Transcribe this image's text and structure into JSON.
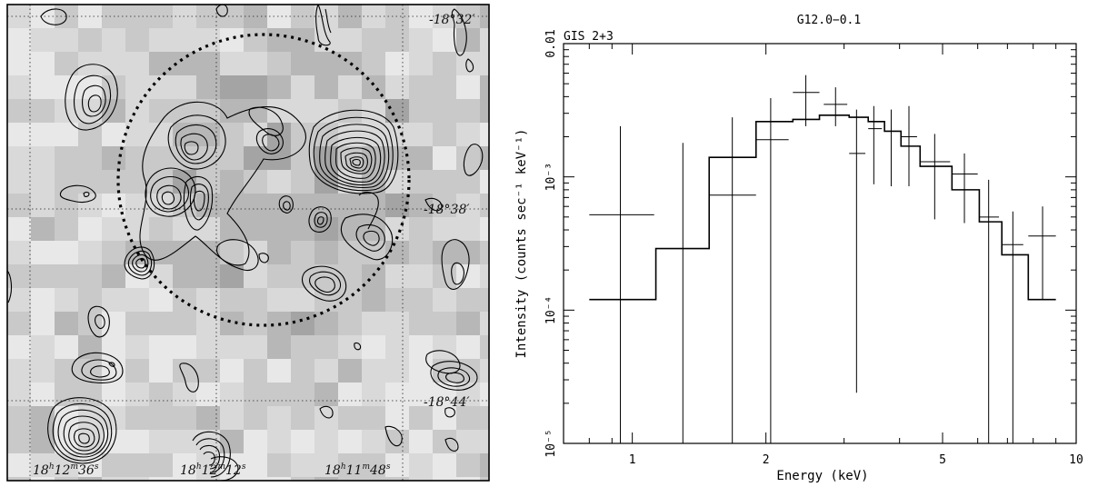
{
  "map_panel": {
    "dec_labels": [
      "-18°32′",
      "-18°38′",
      "-18°44′"
    ],
    "ra_labels": [
      {
        "h": "18",
        "m": "12",
        "s": "36"
      },
      {
        "h": "18",
        "m": "12",
        "s": "12"
      },
      {
        "h": "18",
        "m": "11",
        "s": "48"
      }
    ]
  },
  "chart_data": {
    "type": "line",
    "title": "G12.0−0.1",
    "subtitle": "GIS 2+3",
    "xlabel": "Energy (keV)",
    "ylabel": "Intensity (counts sec⁻¹ keV⁻¹)",
    "xscale": "log",
    "yscale": "log",
    "xlim": [
      0.7,
      10
    ],
    "ylim": [
      1e-05,
      0.01
    ],
    "x_ticks": [
      {
        "value": 1,
        "label": "1"
      },
      {
        "value": 2,
        "label": "2"
      },
      {
        "value": 5,
        "label": "5"
      },
      {
        "value": 10,
        "label": "10"
      }
    ],
    "y_ticks": [
      {
        "value": 0.01,
        "label": "0.01"
      },
      {
        "value": 0.001,
        "label": "10⁻³"
      },
      {
        "value": 0.0001,
        "label": "10⁻⁴"
      },
      {
        "value": 1e-05,
        "label": "10⁻⁵"
      }
    ],
    "series": [
      {
        "kind": "data",
        "points": [
          {
            "x": 0.94,
            "xlo": 0.8,
            "xhi": 1.12,
            "y": 0.00052,
            "ylo": 1e-05,
            "yhi": 0.0024
          },
          {
            "x": 1.3,
            "xlo": 1.13,
            "xhi": 1.48,
            "y": 0.00029,
            "ylo": 1e-05,
            "yhi": 0.0018
          },
          {
            "x": 1.68,
            "xlo": 1.49,
            "xhi": 1.9,
            "y": 0.00073,
            "ylo": 1e-05,
            "yhi": 0.0028
          },
          {
            "x": 2.05,
            "xlo": 1.9,
            "xhi": 2.25,
            "y": 0.0019,
            "ylo": 1e-05,
            "yhi": 0.0039
          },
          {
            "x": 2.46,
            "xlo": 2.3,
            "xhi": 2.64,
            "y": 0.0043,
            "ylo": 0.0024,
            "yhi": 0.0058
          },
          {
            "x": 2.87,
            "xlo": 2.7,
            "xhi": 3.05,
            "y": 0.0035,
            "ylo": 0.0024,
            "yhi": 0.0047
          },
          {
            "x": 3.2,
            "xlo": 3.08,
            "xhi": 3.35,
            "y": 0.0015,
            "ylo": 2.4e-05,
            "yhi": 0.0032
          },
          {
            "x": 3.5,
            "xlo": 3.4,
            "xhi": 3.65,
            "y": 0.0023,
            "ylo": 0.00088,
            "yhi": 0.0034
          },
          {
            "x": 3.83,
            "xlo": 3.7,
            "xhi": 3.98,
            "y": 0.0022,
            "ylo": 0.00085,
            "yhi": 0.0032
          },
          {
            "x": 4.2,
            "xlo": 4.03,
            "xhi": 4.38,
            "y": 0.002,
            "ylo": 0.00085,
            "yhi": 0.0034
          },
          {
            "x": 4.8,
            "xlo": 4.45,
            "xhi": 5.2,
            "y": 0.0013,
            "ylo": 0.00048,
            "yhi": 0.0021
          },
          {
            "x": 5.6,
            "xlo": 5.25,
            "xhi": 6.0,
            "y": 0.00105,
            "ylo": 0.00045,
            "yhi": 0.0015
          },
          {
            "x": 6.35,
            "xlo": 6.05,
            "xhi": 6.7,
            "y": 0.0005,
            "ylo": 1e-05,
            "yhi": 0.00095
          },
          {
            "x": 7.2,
            "xlo": 6.8,
            "xhi": 7.6,
            "y": 0.00031,
            "ylo": 1e-05,
            "yhi": 0.00055
          },
          {
            "x": 8.4,
            "xlo": 7.8,
            "xhi": 9.0,
            "y": 0.00036,
            "ylo": 0.00012,
            "yhi": 0.0006
          }
        ]
      },
      {
        "kind": "model",
        "step": [
          {
            "x0": 0.8,
            "x1": 1.13,
            "y": 0.00012
          },
          {
            "x0": 1.13,
            "x1": 1.49,
            "y": 0.00029
          },
          {
            "x0": 1.49,
            "x1": 1.9,
            "y": 0.0014
          },
          {
            "x0": 1.9,
            "x1": 2.3,
            "y": 0.0026
          },
          {
            "x0": 2.3,
            "x1": 2.64,
            "y": 0.0027
          },
          {
            "x0": 2.64,
            "x1": 3.08,
            "y": 0.0029
          },
          {
            "x0": 3.08,
            "x1": 3.4,
            "y": 0.0028
          },
          {
            "x0": 3.4,
            "x1": 3.7,
            "y": 0.0026
          },
          {
            "x0": 3.7,
            "x1": 4.03,
            "y": 0.0022
          },
          {
            "x0": 4.03,
            "x1": 4.45,
            "y": 0.0017
          },
          {
            "x0": 4.45,
            "x1": 5.25,
            "y": 0.0012
          },
          {
            "x0": 5.25,
            "x1": 6.05,
            "y": 0.0008
          },
          {
            "x0": 6.05,
            "x1": 6.8,
            "y": 0.00046
          },
          {
            "x0": 6.8,
            "x1": 7.8,
            "y": 0.00026
          },
          {
            "x0": 7.8,
            "x1": 9.0,
            "y": 0.00012
          }
        ]
      }
    ]
  }
}
